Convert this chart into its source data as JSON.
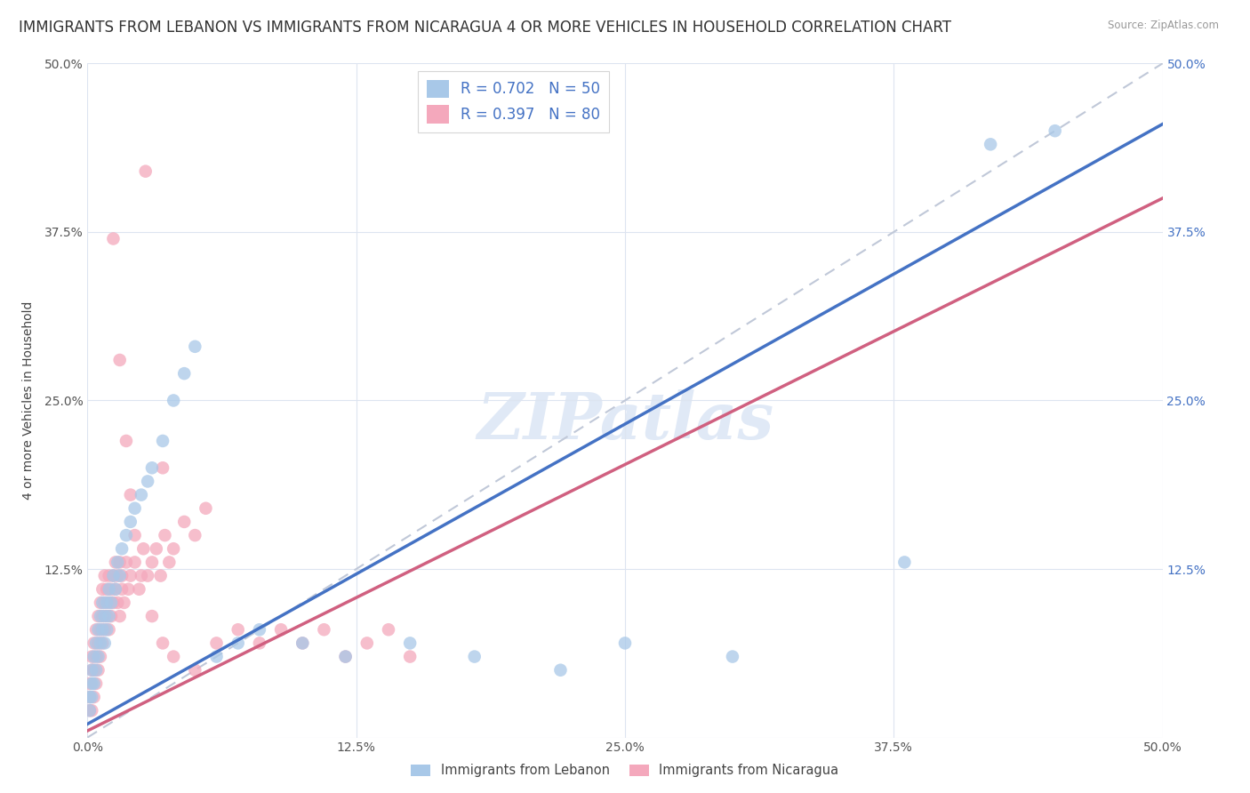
{
  "title": "IMMIGRANTS FROM LEBANON VS IMMIGRANTS FROM NICARAGUA 4 OR MORE VEHICLES IN HOUSEHOLD CORRELATION CHART",
  "source": "Source: ZipAtlas.com",
  "ylabel": "4 or more Vehicles in Household",
  "xlim": [
    0.0,
    0.5
  ],
  "ylim": [
    0.0,
    0.5
  ],
  "xtick_values": [
    0.0,
    0.125,
    0.25,
    0.375,
    0.5
  ],
  "ytick_values": [
    0.0,
    0.125,
    0.25,
    0.375,
    0.5
  ],
  "lebanon_color": "#a8c8e8",
  "nicaragua_color": "#f4a8bc",
  "lebanon_R": 0.702,
  "lebanon_N": 50,
  "nicaragua_R": 0.397,
  "nicaragua_N": 80,
  "line_lebanon_color": "#4472c4",
  "line_nicaragua_color": "#d06080",
  "line_dashed_color": "#c0c8d8",
  "watermark_text": "ZIPatlas",
  "legend_label_lebanon": "Immigrants from Lebanon",
  "legend_label_nicaragua": "Immigrants from Nicaragua",
  "background_color": "#ffffff",
  "grid_color": "#dde4f0",
  "title_fontsize": 12,
  "axis_label_fontsize": 10,
  "tick_fontsize": 10,
  "legend_fontsize": 12,
  "watermark_fontsize": 52,
  "watermark_color": "#c8d8f0",
  "watermark_alpha": 0.55,
  "right_tick_color": "#4472c4",
  "lebanon_x": [
    0.001,
    0.001,
    0.002,
    0.002,
    0.002,
    0.003,
    0.003,
    0.004,
    0.004,
    0.005,
    0.005,
    0.006,
    0.006,
    0.007,
    0.007,
    0.008,
    0.008,
    0.009,
    0.009,
    0.01,
    0.01,
    0.011,
    0.012,
    0.013,
    0.014,
    0.015,
    0.016,
    0.018,
    0.02,
    0.022,
    0.025,
    0.028,
    0.03,
    0.035,
    0.04,
    0.045,
    0.05,
    0.06,
    0.07,
    0.08,
    0.1,
    0.12,
    0.15,
    0.18,
    0.22,
    0.25,
    0.3,
    0.38,
    0.42,
    0.45
  ],
  "lebanon_y": [
    0.02,
    0.03,
    0.04,
    0.05,
    0.03,
    0.06,
    0.04,
    0.05,
    0.07,
    0.06,
    0.08,
    0.07,
    0.09,
    0.08,
    0.1,
    0.09,
    0.07,
    0.1,
    0.08,
    0.09,
    0.11,
    0.1,
    0.12,
    0.11,
    0.13,
    0.12,
    0.14,
    0.15,
    0.16,
    0.17,
    0.18,
    0.19,
    0.2,
    0.22,
    0.25,
    0.27,
    0.29,
    0.06,
    0.07,
    0.08,
    0.07,
    0.06,
    0.07,
    0.06,
    0.05,
    0.07,
    0.06,
    0.13,
    0.44,
    0.45
  ],
  "nicaragua_x": [
    0.001,
    0.001,
    0.001,
    0.002,
    0.002,
    0.002,
    0.003,
    0.003,
    0.003,
    0.004,
    0.004,
    0.004,
    0.005,
    0.005,
    0.005,
    0.006,
    0.006,
    0.006,
    0.007,
    0.007,
    0.007,
    0.008,
    0.008,
    0.008,
    0.009,
    0.009,
    0.01,
    0.01,
    0.01,
    0.011,
    0.011,
    0.012,
    0.012,
    0.013,
    0.013,
    0.014,
    0.014,
    0.015,
    0.015,
    0.016,
    0.016,
    0.017,
    0.018,
    0.019,
    0.02,
    0.022,
    0.024,
    0.026,
    0.028,
    0.03,
    0.032,
    0.034,
    0.036,
    0.038,
    0.04,
    0.045,
    0.05,
    0.055,
    0.06,
    0.07,
    0.08,
    0.09,
    0.1,
    0.11,
    0.12,
    0.13,
    0.14,
    0.15,
    0.027,
    0.035,
    0.012,
    0.015,
    0.018,
    0.02,
    0.022,
    0.025,
    0.03,
    0.035,
    0.04,
    0.05
  ],
  "nicaragua_y": [
    0.02,
    0.03,
    0.04,
    0.02,
    0.05,
    0.06,
    0.03,
    0.07,
    0.05,
    0.06,
    0.08,
    0.04,
    0.07,
    0.09,
    0.05,
    0.08,
    0.1,
    0.06,
    0.09,
    0.11,
    0.07,
    0.1,
    0.08,
    0.12,
    0.09,
    0.11,
    0.1,
    0.12,
    0.08,
    0.11,
    0.09,
    0.12,
    0.1,
    0.13,
    0.11,
    0.12,
    0.1,
    0.13,
    0.09,
    0.11,
    0.12,
    0.1,
    0.13,
    0.11,
    0.12,
    0.13,
    0.11,
    0.14,
    0.12,
    0.13,
    0.14,
    0.12,
    0.15,
    0.13,
    0.14,
    0.16,
    0.15,
    0.17,
    0.07,
    0.08,
    0.07,
    0.08,
    0.07,
    0.08,
    0.06,
    0.07,
    0.08,
    0.06,
    0.42,
    0.2,
    0.37,
    0.28,
    0.22,
    0.18,
    0.15,
    0.12,
    0.09,
    0.07,
    0.06,
    0.05
  ],
  "leb_line_x0": 0.0,
  "leb_line_y0": 0.01,
  "leb_line_x1": 0.5,
  "leb_line_y1": 0.455,
  "nic_line_x0": 0.0,
  "nic_line_y0": 0.005,
  "nic_line_x1": 0.5,
  "nic_line_y1": 0.4
}
